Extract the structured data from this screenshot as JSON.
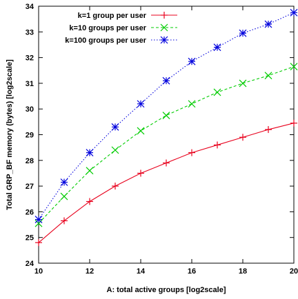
{
  "chart_data": {
    "type": "line",
    "title": "",
    "xlabel": "A: total active groups [log2scale]",
    "ylabel": "Total GRP_BF memory (bytes) [log2scale]",
    "xlim": [
      10,
      20
    ],
    "ylim": [
      24,
      34
    ],
    "xticks": [
      "10",
      "12",
      "14",
      "16",
      "18",
      "20"
    ],
    "yticks": [
      "24",
      "25",
      "26",
      "27",
      "28",
      "29",
      "30",
      "31",
      "32",
      "33",
      "34"
    ],
    "grid": false,
    "legend_position": "top-left",
    "x": [
      10,
      11,
      12,
      13,
      14,
      15,
      16,
      17,
      18,
      19,
      20
    ],
    "series": [
      {
        "name": "k=1 group per user",
        "color": "#e8001c",
        "marker": "plus",
        "line": "solid",
        "values": [
          24.8,
          25.65,
          26.4,
          27.0,
          27.5,
          27.9,
          28.3,
          28.6,
          28.9,
          29.2,
          29.45
        ]
      },
      {
        "name": "k=10 groups per user",
        "color": "#00cc00",
        "marker": "x",
        "line": "dashed",
        "values": [
          25.55,
          26.6,
          27.6,
          28.4,
          29.15,
          29.75,
          30.2,
          30.65,
          31.0,
          31.3,
          31.65
        ]
      },
      {
        "name": "k=100 groups per user",
        "color": "#0000dd",
        "marker": "asterisk",
        "line": "dotted",
        "values": [
          25.7,
          27.15,
          28.3,
          29.3,
          30.2,
          31.1,
          31.85,
          32.4,
          32.95,
          33.3,
          33.75
        ]
      }
    ]
  }
}
